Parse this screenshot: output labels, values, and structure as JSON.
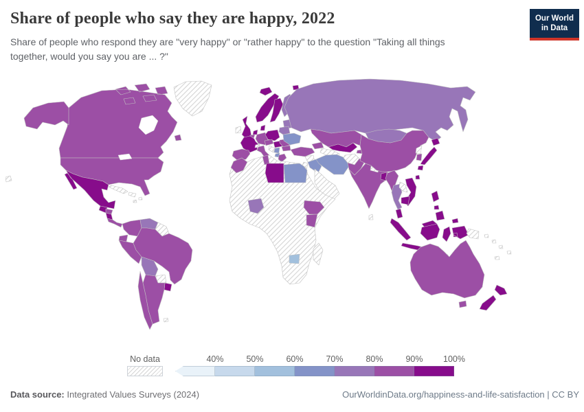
{
  "header": {
    "title": "Share of people who say they are happy, 2022",
    "subtitle": "Share of people who respond they are \"very happy\" or \"rather happy\" to the question \"Taking all things together, would you say you are ... ?\"",
    "logo": {
      "line1": "Our World",
      "line2": "in Data",
      "bg_color": "#102d4e",
      "accent_color": "#cf3529"
    }
  },
  "legend": {
    "no_data_label": "No data",
    "tick_labels": [
      "40%",
      "50%",
      "60%",
      "70%",
      "80%",
      "90%",
      "100%"
    ]
  },
  "footer": {
    "datasource_label": "Data source:",
    "datasource_value": " Integrated Values Surveys (2024)",
    "credit": "OurWorldinData.org/happiness-and-life-satisfaction | CC BY"
  },
  "chart_data": {
    "type": "heatmap",
    "subtype": "world-choropleth-map",
    "title": "Share of people who say they are happy, 2022",
    "subtitle": "Share of people who respond they are \"very happy\" or \"rather happy\" to the question \"Taking all things together, would you say you are ... ?\"",
    "year": 2022,
    "unit": "share of people (%)",
    "legend_position": "bottom",
    "legend_buckets": [
      {
        "label": "<40%",
        "color": "#e9f2f9"
      },
      {
        "label": "40-50%",
        "color": "#c7d9ec"
      },
      {
        "label": "50-60%",
        "color": "#a2c0dd"
      },
      {
        "label": "60-70%",
        "color": "#8493c8"
      },
      {
        "label": "70-80%",
        "color": "#9876b8"
      },
      {
        "label": "80-90%",
        "color": "#9c4fa5"
      },
      {
        "label": "90-100%",
        "color": "#870c8b"
      }
    ],
    "no_data": {
      "label": "No data",
      "pattern": "diagonal-hatch"
    },
    "regions": {
      "Canada": "80-90%",
      "United States": "80-90%",
      "Mexico": "90-100%",
      "Guatemala": "90-100%",
      "Honduras": "80-90%",
      "Nicaragua": "90-100%",
      "Costa Rica & Panama": "80-90%",
      "Cuba": "No data",
      "Haiti & Dominican Republic": "No data",
      "Caribbean islands": "No data",
      "Greenland": "No data",
      "Colombia": "80-90%",
      "Venezuela": "70-80%",
      "Guyana & Suriname": "No data",
      "Ecuador": "80-90%",
      "Peru": "80-90%",
      "Brazil": "80-90%",
      "Bolivia": "70-80%",
      "Paraguay": "No data",
      "Uruguay": "90-100%",
      "Argentina": "80-90%",
      "Chile": "80-90%",
      "Falkland Islands": "No data",
      "Iceland": "90-100%",
      "Svalbard": "90-100%",
      "Ireland": "No data",
      "United Kingdom": "90-100%",
      "Norway": "90-100%",
      "Sweden": "90-100%",
      "Finland": "70-80%",
      "Denmark": "90-100%",
      "Baltic states": "70-80%",
      "Netherlands": "90-100%",
      "Belgium": "80-90%",
      "Germany": "80-90%",
      "Poland": "90-100%",
      "Czechia & Austria": "80-90%",
      "Slovakia & Hungary": "90-100%",
      "France": "90-100%",
      "Switzerland": "No data",
      "Spain & Portugal": "80-90%",
      "Italy": "80-90%",
      "Croatia & Bosnia": "No data",
      "Serbia": "60-70%",
      "Romania": "80-90%",
      "Bulgaria": "80-90%",
      "Albania & North Macedonia": "60-70%",
      "Greece": "80-90%",
      "Ukraine": "60-70%",
      "Belarus": "70-80%",
      "Russia": "70-80%",
      "Kazakhstan": "80-90%",
      "Uzbekistan": "90-100%",
      "Kyrgyzstan": "90-100%",
      "Tajikistan": "80-90%",
      "Turkmenistan": "No data",
      "Caucasus": "80-90%",
      "Turkey": "80-90%",
      "Syria": "No data",
      "Jordan & Israel": "No data",
      "Iraq": "60-70%",
      "Iran": "60-70%",
      "Arabian Peninsula": "No data",
      "Afghanistan": "No data",
      "Pakistan": "80-90%",
      "India": "80-90%",
      "Nepal": "No data",
      "Bangladesh": "90-100%",
      "Sri Lanka": "No data",
      "China": "80-90%",
      "Mongolia": "70-80%",
      "North Korea": "No data",
      "South Korea": "80-90%",
      "Japan": "90-100%",
      "Taiwan": "90-100%",
      "Myanmar": "80-90%",
      "Thailand": "70-80%",
      "Laos": "No data",
      "Vietnam": "90-100%",
      "Cambodia": "90-100%",
      "Malaysia": "90-100%",
      "Indonesia": "90-100%",
      "Papua New Guinea": "No data",
      "Solomon Islands": "No data",
      "New Caledonia & Fiji": "No data",
      "Philippines": "90-100%",
      "Australia": "80-90%",
      "New Zealand": "90-100%",
      "Africa (other)": "No data",
      "Morocco": "80-90%",
      "Tunisia": "80-90%",
      "Libya": "90-100%",
      "Egypt": "60-70%",
      "Nigeria": "70-80%",
      "Ethiopia": "80-90%",
      "Kenya": "80-90%",
      "Zimbabwe": "50-60%",
      "Madagascar": "No data",
      "Pacific islands": "No data"
    }
  }
}
